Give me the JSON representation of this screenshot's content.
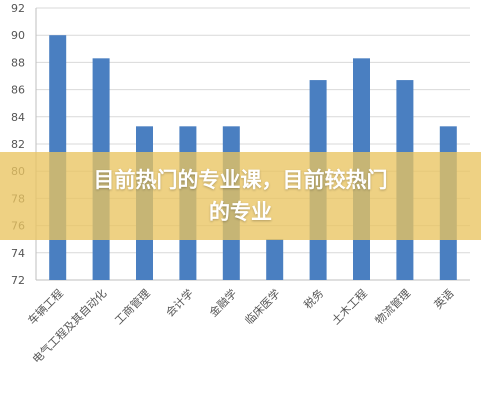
{
  "chart_data": {
    "type": "bar",
    "categories": [
      "车辆工程",
      "电气工程及其自动化",
      "工商管理",
      "会计学",
      "金融学",
      "临床医学",
      "税务",
      "土木工程",
      "物流管理",
      "英语"
    ],
    "values": [
      90,
      88.3,
      83.3,
      83.3,
      83.3,
      75,
      86.7,
      88.3,
      86.7,
      83.3
    ],
    "ylim": [
      72,
      92
    ],
    "yticks": [
      72,
      74,
      76,
      78,
      80,
      82,
      84,
      86,
      88,
      90,
      92
    ],
    "grid": true,
    "bar_color": "#4a7fc1"
  },
  "overlay": {
    "title": "目前热门的专业课，目前较热门的专业",
    "color": "#e9c460"
  }
}
